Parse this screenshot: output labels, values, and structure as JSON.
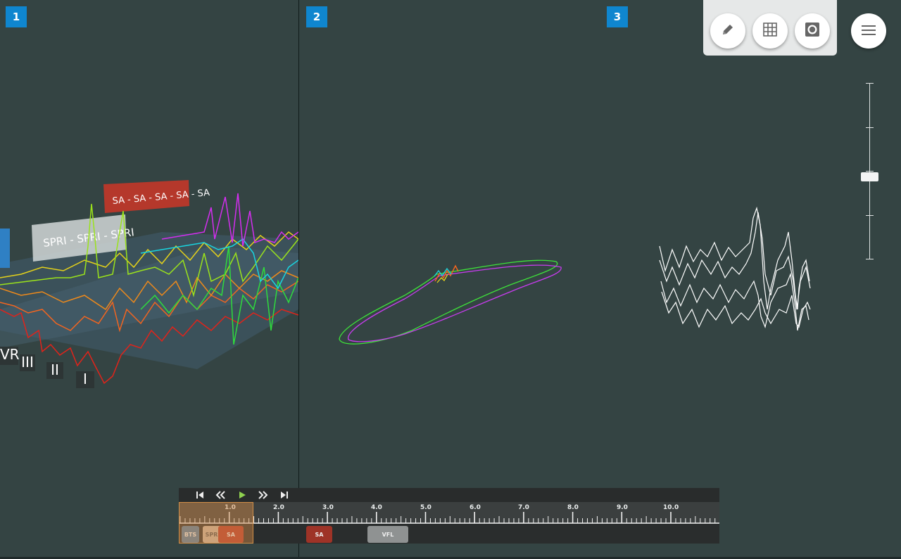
{
  "panes": [
    {
      "number": "1"
    },
    {
      "number": "2"
    },
    {
      "number": "3"
    }
  ],
  "toolbar": {
    "buttons": [
      {
        "icon": "pencil-icon"
      },
      {
        "icon": "grid-icon"
      },
      {
        "icon": "camera-icon"
      }
    ],
    "menu_icon": "hamburger-menu-icon"
  },
  "view3d": {
    "annotations": [
      {
        "label": "SPRI - SPRI - SPRI",
        "color": "#c9cfcf"
      },
      {
        "label": "SA - SA - SA - SA - SA",
        "color": "#b5382b"
      }
    ],
    "leads": [
      "VR",
      "III",
      "II",
      "I"
    ]
  },
  "zoom_slider": {
    "level": 0.5
  },
  "timeline": {
    "controls": [
      "skip-to-start-icon",
      "rewind-icon",
      "play-icon",
      "fast-forward-icon",
      "skip-to-end-icon"
    ],
    "tick_labels": [
      "1.0",
      "2.0",
      "3.0",
      "4.0",
      "5.0",
      "6.0",
      "7.0",
      "8.0",
      "9.0",
      "10.0"
    ],
    "segments": [
      {
        "label": "BTS",
        "color": "#4f7fa6"
      },
      {
        "label": "SPRI",
        "color": "#c9b7a5"
      },
      {
        "label": "SA",
        "color": "#b5382b"
      },
      {
        "label": "SA",
        "color": "#9e3327"
      },
      {
        "label": "VFL",
        "color": "#8f9292"
      }
    ],
    "window": {
      "start": 0.0,
      "end": 1.5
    }
  }
}
